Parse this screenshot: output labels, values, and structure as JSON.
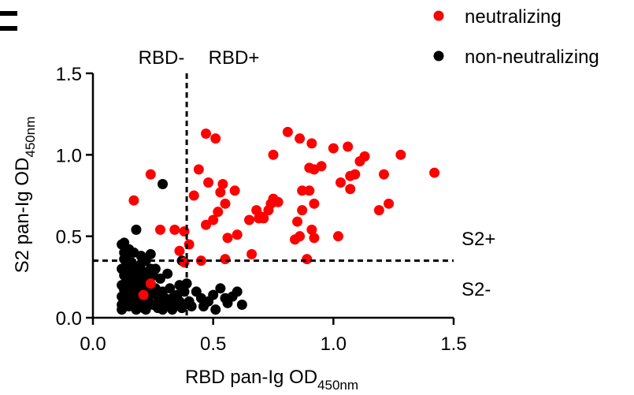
{
  "chart_data": {
    "type": "scatter",
    "xlabel": "RBD pan-Ig OD",
    "xlabel_sub": "450nm",
    "ylabel": "S2 pan-Ig OD",
    "ylabel_sub": "450nm",
    "xlim": [
      0.0,
      1.5
    ],
    "ylim": [
      0.0,
      1.5
    ],
    "x_ticks": [
      "0.0",
      "0.5",
      "1.0",
      "1.5"
    ],
    "y_ticks": [
      "0.0",
      "0.5",
      "1.0",
      "1.5"
    ],
    "x_tick_values": [
      0.0,
      0.5,
      1.0,
      1.5
    ],
    "y_tick_values": [
      0.0,
      0.5,
      1.0,
      1.5
    ],
    "grid": false,
    "legend_position": "top-right",
    "thresholds": {
      "x": 0.39,
      "y": 0.35
    },
    "annotations": {
      "rbd_neg": "RBD-",
      "rbd_pos": "RBD+",
      "s2_pos": "S2+",
      "s2_neg": "S2-"
    },
    "series": [
      {
        "name": "neutralizing",
        "color": "#ff0000",
        "points": [
          [
            0.17,
            0.72
          ],
          [
            0.24,
            0.88
          ],
          [
            0.28,
            0.54
          ],
          [
            0.34,
            0.54
          ],
          [
            0.38,
            0.53
          ],
          [
            0.36,
            0.41
          ],
          [
            0.38,
            0.34
          ],
          [
            0.4,
            0.45
          ],
          [
            0.42,
            0.75
          ],
          [
            0.44,
            0.91
          ],
          [
            0.47,
            1.13
          ],
          [
            0.48,
            0.83
          ],
          [
            0.51,
            1.1
          ],
          [
            0.52,
            0.65
          ],
          [
            0.5,
            0.6
          ],
          [
            0.47,
            0.57
          ],
          [
            0.53,
            0.77
          ],
          [
            0.54,
            0.82
          ],
          [
            0.55,
            0.7
          ],
          [
            0.56,
            0.49
          ],
          [
            0.59,
            0.78
          ],
          [
            0.6,
            0.51
          ],
          [
            0.55,
            0.36
          ],
          [
            0.45,
            0.35
          ],
          [
            0.65,
            0.6
          ],
          [
            0.66,
            0.39
          ],
          [
            0.68,
            0.66
          ],
          [
            0.69,
            0.61
          ],
          [
            0.71,
            0.61
          ],
          [
            0.73,
            0.66
          ],
          [
            0.74,
            0.7
          ],
          [
            0.75,
            0.73
          ],
          [
            0.77,
            0.71
          ],
          [
            0.75,
            1.0
          ],
          [
            0.7,
            0.62
          ],
          [
            0.81,
            1.14
          ],
          [
            0.84,
            0.48
          ],
          [
            0.85,
            0.59
          ],
          [
            0.86,
            0.5
          ],
          [
            0.86,
            1.1
          ],
          [
            0.87,
            0.78
          ],
          [
            0.87,
            0.66
          ],
          [
            0.89,
            0.36
          ],
          [
            0.9,
            0.92
          ],
          [
            0.9,
            0.78
          ],
          [
            0.91,
            1.07
          ],
          [
            0.91,
            0.54
          ],
          [
            0.92,
            0.49
          ],
          [
            0.92,
            0.91
          ],
          [
            0.92,
            0.7
          ],
          [
            0.95,
            0.93
          ],
          [
            1.0,
            1.04
          ],
          [
            1.02,
            0.5
          ],
          [
            1.03,
            0.83
          ],
          [
            1.06,
            1.05
          ],
          [
            1.07,
            0.79
          ],
          [
            1.07,
            0.87
          ],
          [
            1.09,
            0.88
          ],
          [
            1.11,
            0.96
          ],
          [
            1.13,
            0.99
          ],
          [
            1.19,
            0.66
          ],
          [
            1.21,
            0.88
          ],
          [
            1.23,
            0.7
          ],
          [
            1.28,
            1.0
          ],
          [
            1.42,
            0.89
          ],
          [
            0.24,
            0.21
          ],
          [
            0.21,
            0.14
          ]
        ]
      },
      {
        "name": "non-neutralizing",
        "color": "#000000",
        "points": [
          [
            0.29,
            0.82
          ],
          [
            0.18,
            0.54
          ],
          [
            0.12,
            0.45
          ],
          [
            0.13,
            0.46
          ],
          [
            0.13,
            0.4
          ],
          [
            0.15,
            0.42
          ],
          [
            0.17,
            0.4
          ],
          [
            0.2,
            0.38
          ],
          [
            0.22,
            0.35
          ],
          [
            0.24,
            0.39
          ],
          [
            0.13,
            0.36
          ],
          [
            0.14,
            0.33
          ],
          [
            0.12,
            0.3
          ],
          [
            0.13,
            0.26
          ],
          [
            0.14,
            0.23
          ],
          [
            0.12,
            0.2
          ],
          [
            0.13,
            0.17
          ],
          [
            0.12,
            0.13
          ],
          [
            0.13,
            0.1
          ],
          [
            0.12,
            0.08
          ],
          [
            0.15,
            0.31
          ],
          [
            0.16,
            0.28
          ],
          [
            0.15,
            0.25
          ],
          [
            0.16,
            0.22
          ],
          [
            0.15,
            0.19
          ],
          [
            0.16,
            0.16
          ],
          [
            0.15,
            0.12
          ],
          [
            0.16,
            0.1
          ],
          [
            0.15,
            0.07
          ],
          [
            0.17,
            0.26
          ],
          [
            0.17,
            0.21
          ],
          [
            0.18,
            0.18
          ],
          [
            0.17,
            0.14
          ],
          [
            0.18,
            0.11
          ],
          [
            0.17,
            0.08
          ],
          [
            0.19,
            0.3
          ],
          [
            0.19,
            0.24
          ],
          [
            0.2,
            0.2
          ],
          [
            0.19,
            0.15
          ],
          [
            0.2,
            0.12
          ],
          [
            0.19,
            0.08
          ],
          [
            0.21,
            0.28
          ],
          [
            0.22,
            0.24
          ],
          [
            0.21,
            0.18
          ],
          [
            0.22,
            0.1
          ],
          [
            0.21,
            0.06
          ],
          [
            0.23,
            0.2
          ],
          [
            0.24,
            0.15
          ],
          [
            0.23,
            0.12
          ],
          [
            0.25,
            0.08
          ],
          [
            0.26,
            0.3
          ],
          [
            0.26,
            0.18
          ],
          [
            0.27,
            0.13
          ],
          [
            0.28,
            0.1
          ],
          [
            0.29,
            0.16
          ],
          [
            0.3,
            0.12
          ],
          [
            0.31,
            0.09
          ],
          [
            0.29,
            0.05
          ],
          [
            0.32,
            0.18
          ],
          [
            0.33,
            0.12
          ],
          [
            0.34,
            0.08
          ],
          [
            0.35,
            0.14
          ],
          [
            0.36,
            0.1
          ],
          [
            0.37,
            0.06
          ],
          [
            0.38,
            0.16
          ],
          [
            0.39,
            0.21
          ],
          [
            0.4,
            0.1
          ],
          [
            0.41,
            0.07
          ],
          [
            0.37,
            0.35
          ],
          [
            0.45,
            0.12
          ],
          [
            0.46,
            0.07
          ],
          [
            0.48,
            0.1
          ],
          [
            0.53,
            0.18
          ],
          [
            0.55,
            0.12
          ],
          [
            0.56,
            0.09
          ],
          [
            0.58,
            0.13
          ],
          [
            0.6,
            0.16
          ],
          [
            0.62,
            0.08
          ],
          [
            0.2,
            0.33
          ],
          [
            0.25,
            0.26
          ],
          [
            0.14,
            0.38
          ],
          [
            0.16,
            0.34
          ],
          [
            0.28,
            0.24
          ],
          [
            0.31,
            0.27
          ],
          [
            0.24,
            0.3
          ],
          [
            0.18,
            0.05
          ],
          [
            0.22,
            0.05
          ],
          [
            0.27,
            0.06
          ],
          [
            0.33,
            0.05
          ],
          [
            0.12,
            0.05
          ],
          [
            0.43,
            0.16
          ],
          [
            0.36,
            0.2
          ],
          [
            0.5,
            0.14
          ],
          [
            0.51,
            0.05
          ]
        ]
      }
    ]
  }
}
